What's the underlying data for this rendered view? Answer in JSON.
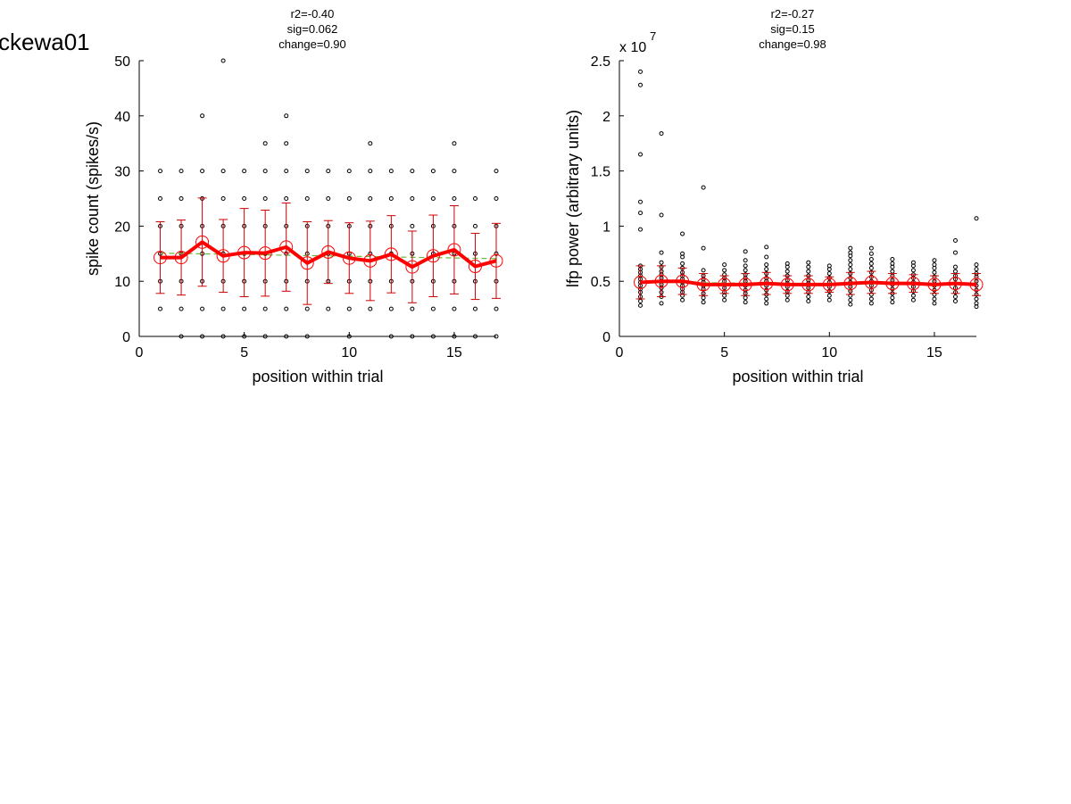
{
  "page_label": "ckewa01",
  "chart_data": [
    {
      "type": "scatter",
      "stats": [
        "r2=-0.40",
        "sig=0.062",
        "change=0.90"
      ],
      "xlabel": "position within trial",
      "ylabel": "spike count (spikes/s)",
      "xlim": [
        0,
        17
      ],
      "ylim": [
        0,
        50
      ],
      "xticks": [
        0,
        5,
        10,
        15
      ],
      "yticks": [
        0,
        10,
        20,
        30,
        40,
        50
      ],
      "exponent_label": "",
      "points": {
        "1": [
          5,
          10,
          15,
          20,
          25,
          30
        ],
        "2": [
          0,
          5,
          10,
          15,
          20,
          25,
          30
        ],
        "3": [
          0,
          5,
          10,
          15,
          20,
          25,
          30,
          40
        ],
        "4": [
          0,
          5,
          10,
          15,
          20,
          25,
          30,
          50
        ],
        "5": [
          0,
          5,
          10,
          15,
          20,
          25,
          30
        ],
        "6": [
          0,
          5,
          10,
          15,
          20,
          25,
          30,
          35
        ],
        "7": [
          0,
          5,
          10,
          15,
          20,
          25,
          30,
          35,
          40
        ],
        "8": [
          0,
          5,
          10,
          15,
          20,
          25,
          30
        ],
        "9": [
          5,
          10,
          15,
          20,
          25,
          30
        ],
        "10": [
          0,
          5,
          10,
          15,
          20,
          25,
          30
        ],
        "11": [
          5,
          10,
          15,
          20,
          25,
          30,
          35
        ],
        "12": [
          0,
          5,
          10,
          15,
          20,
          25,
          30
        ],
        "13": [
          0,
          5,
          10,
          15,
          20,
          25,
          30
        ],
        "14": [
          0,
          5,
          10,
          15,
          20,
          25,
          30
        ],
        "15": [
          0,
          5,
          10,
          15,
          20,
          25,
          30,
          35
        ],
        "16": [
          0,
          5,
          10,
          15,
          20,
          25
        ],
        "17": [
          0,
          5,
          10,
          15,
          20,
          25,
          30
        ]
      },
      "means": [
        14.3,
        14.3,
        17.1,
        14.6,
        15.2,
        15.1,
        16.2,
        13.3,
        15.3,
        14.2,
        13.7,
        14.9,
        12.6,
        14.6,
        15.7,
        12.7,
        13.7
      ],
      "errors": [
        6.5,
        6.8,
        8.0,
        6.6,
        8.0,
        7.8,
        8.0,
        7.5,
        5.7,
        6.4,
        7.2,
        7.0,
        6.5,
        7.4,
        8.0,
        6.0,
        6.8
      ],
      "fit": [
        15.1,
        14.1
      ],
      "colors": {
        "points": "#000000",
        "means": "#ff0000",
        "errors": "#cc0000",
        "fit": "#66bb33"
      }
    },
    {
      "type": "scatter",
      "stats": [
        "r2=-0.27",
        "sig=0.15",
        "change=0.98"
      ],
      "xlabel": "position within trial",
      "ylabel": "lfp power (arbitrary units)",
      "xlim": [
        0,
        17
      ],
      "ylim": [
        0,
        2.5
      ],
      "xticks": [
        0,
        5,
        10,
        15
      ],
      "yticks": [
        0,
        0.5,
        1,
        1.5,
        2,
        2.5
      ],
      "exponent_label": "x 10",
      "exponent_power": "7",
      "points": {
        "1": [
          0.28,
          0.32,
          0.36,
          0.4,
          0.43,
          0.46,
          0.49,
          0.52,
          0.55,
          0.58,
          0.61,
          0.64,
          0.97,
          1.12,
          1.22,
          1.65,
          2.28,
          2.4
        ],
        "2": [
          0.3,
          0.36,
          0.4,
          0.44,
          0.47,
          0.5,
          0.53,
          0.56,
          0.59,
          0.63,
          0.67,
          0.76,
          1.1,
          1.84
        ],
        "3": [
          0.33,
          0.37,
          0.4,
          0.43,
          0.46,
          0.49,
          0.52,
          0.55,
          0.58,
          0.62,
          0.66,
          0.72,
          0.75,
          0.93
        ],
        "4": [
          0.31,
          0.35,
          0.39,
          0.43,
          0.46,
          0.49,
          0.52,
          0.55,
          0.6,
          0.8,
          1.35
        ],
        "5": [
          0.33,
          0.37,
          0.4,
          0.44,
          0.47,
          0.5,
          0.53,
          0.56,
          0.6,
          0.65
        ],
        "6": [
          0.31,
          0.35,
          0.39,
          0.42,
          0.46,
          0.5,
          0.53,
          0.56,
          0.6,
          0.64,
          0.69,
          0.77
        ],
        "7": [
          0.3,
          0.34,
          0.38,
          0.42,
          0.46,
          0.5,
          0.53,
          0.57,
          0.61,
          0.65,
          0.72,
          0.81
        ],
        "8": [
          0.33,
          0.37,
          0.41,
          0.45,
          0.48,
          0.51,
          0.55,
          0.59,
          0.63,
          0.66
        ],
        "9": [
          0.32,
          0.36,
          0.4,
          0.44,
          0.48,
          0.51,
          0.55,
          0.59,
          0.63,
          0.67
        ],
        "10": [
          0.33,
          0.37,
          0.41,
          0.45,
          0.49,
          0.53,
          0.57,
          0.61,
          0.64
        ],
        "11": [
          0.29,
          0.33,
          0.37,
          0.41,
          0.45,
          0.49,
          0.53,
          0.57,
          0.61,
          0.65,
          0.69,
          0.73,
          0.76,
          0.8
        ],
        "12": [
          0.3,
          0.34,
          0.38,
          0.42,
          0.46,
          0.5,
          0.54,
          0.58,
          0.62,
          0.66,
          0.7,
          0.75,
          0.8
        ],
        "13": [
          0.31,
          0.35,
          0.39,
          0.43,
          0.47,
          0.51,
          0.55,
          0.59,
          0.63,
          0.66,
          0.7
        ],
        "14": [
          0.33,
          0.37,
          0.41,
          0.45,
          0.49,
          0.53,
          0.56,
          0.6,
          0.64,
          0.67
        ],
        "15": [
          0.3,
          0.34,
          0.38,
          0.42,
          0.46,
          0.5,
          0.54,
          0.58,
          0.62,
          0.65,
          0.69
        ],
        "16": [
          0.32,
          0.36,
          0.4,
          0.44,
          0.48,
          0.52,
          0.55,
          0.59,
          0.63,
          0.76,
          0.87
        ],
        "17": [
          0.27,
          0.3,
          0.34,
          0.38,
          0.42,
          0.46,
          0.5,
          0.54,
          0.57,
          0.61,
          0.65,
          1.07
        ]
      },
      "means": [
        0.49,
        0.5,
        0.5,
        0.47,
        0.47,
        0.47,
        0.48,
        0.47,
        0.47,
        0.47,
        0.48,
        0.49,
        0.48,
        0.48,
        0.47,
        0.48,
        0.47
      ],
      "errors": [
        0.15,
        0.14,
        0.12,
        0.1,
        0.08,
        0.1,
        0.1,
        0.08,
        0.08,
        0.07,
        0.1,
        0.1,
        0.09,
        0.08,
        0.08,
        0.09,
        0.1
      ],
      "fit": [
        0.49,
        0.47
      ],
      "colors": {
        "points": "#000000",
        "means": "#ff0000",
        "errors": "#cc0000",
        "fit": "#66bb33"
      }
    }
  ]
}
